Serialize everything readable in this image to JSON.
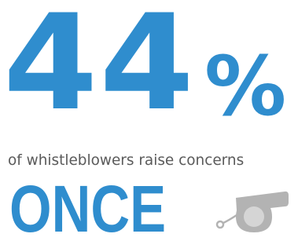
{
  "headline": {
    "number": "44",
    "percent_sign": "%"
  },
  "caption": "of whistleblowers raise concerns",
  "emphasis": "ONCE",
  "icons": {
    "whistle": "whistle-icon"
  },
  "colors": {
    "accent_blue": "#2f8dce",
    "text_gray": "#5a5a5a",
    "whistle_gray": "#b3b3b3"
  }
}
